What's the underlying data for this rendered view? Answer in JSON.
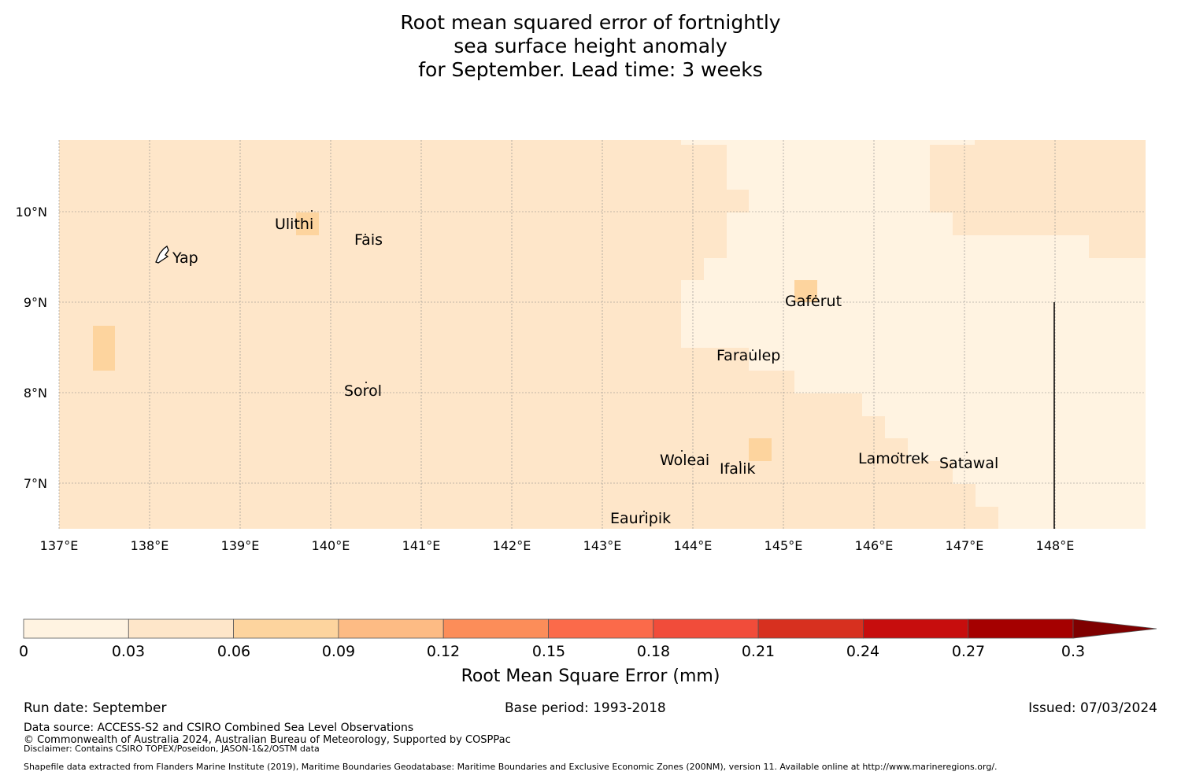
{
  "title": {
    "line1": "Root mean squared error of fortnightly",
    "line2": "sea surface height anomaly",
    "line3": "for September. Lead time: 3 weeks"
  },
  "map": {
    "lon_range": [
      137.0,
      149.0
    ],
    "lat_range": [
      6.5,
      10.8
    ],
    "lon_ticks": [
      "137°E",
      "138°E",
      "139°E",
      "140°E",
      "141°E",
      "142°E",
      "143°E",
      "144°E",
      "145°E",
      "146°E",
      "147°E",
      "148°E"
    ],
    "lat_ticks": [
      "10°N",
      "9°N",
      "8°N",
      "7°N"
    ],
    "gridlines": true,
    "colors": {
      "bin_0_003": "#fff3e1",
      "bin_003_006": "#fee6c9",
      "bin_006_009": "#fdd49e",
      "gridline": "#888888"
    },
    "places": [
      {
        "name": "Yap",
        "lon": 138.3,
        "lat": 9.5
      },
      {
        "name": "Ulithi",
        "lon": 139.7,
        "lat": 9.85
      },
      {
        "name": "Fais",
        "lon": 140.5,
        "lat": 9.75
      },
      {
        "name": "Gaferut",
        "lon": 145.4,
        "lat": 9.0
      },
      {
        "name": "Faraulep",
        "lon": 144.5,
        "lat": 8.4
      },
      {
        "name": "Sorol",
        "lon": 140.4,
        "lat": 8.0
      },
      {
        "name": "Woleai",
        "lon": 143.9,
        "lat": 7.3
      },
      {
        "name": "Ifalik",
        "lon": 144.5,
        "lat": 7.2
      },
      {
        "name": "Lamotrek",
        "lon": 146.3,
        "lat": 7.3
      },
      {
        "name": "Satawal",
        "lon": 147.1,
        "lat": 7.25
      },
      {
        "name": "Eauripik",
        "lon": 143.4,
        "lat": 6.6
      }
    ]
  },
  "colorbar": {
    "label": "Root Mean Square Error (mm)",
    "ticks": [
      "0",
      "0.03",
      "0.06",
      "0.09",
      "0.12",
      "0.15",
      "0.18",
      "0.21",
      "0.24",
      "0.27",
      "0.3"
    ],
    "colors": [
      "#fff3e1",
      "#fee6c9",
      "#fdd49e",
      "#fdbb84",
      "#fc8d59",
      "#fb6a4a",
      "#f14c3a",
      "#d7301f",
      "#c70d0d",
      "#a50000",
      "#7f0000"
    ],
    "extend": "max"
  },
  "footer": {
    "run_date": "Run date: September",
    "base_period": "Base period: 1993-2018",
    "issued": "Issued: 07/03/2024",
    "data_source": "Data source: ACCESS-S2 and CSIRO Combined Sea Level Observations",
    "copyright": "© Commonwealth of Australia 2024, Australian Bureau of Meteorology, Supported by COSPPac",
    "disclaimer": "Disclaimer: Contains CSIRO TOPEX/Poseidon, JASON-1&2/OSTM data",
    "shapefile": "Shapefile data extracted from Flanders Marine Institute (2019), Maritime Boundaries Geodatabase: Maritime Boundaries and Exclusive Economic Zones (200NM), version 11. Available online at http://www.marineregions.org/."
  }
}
